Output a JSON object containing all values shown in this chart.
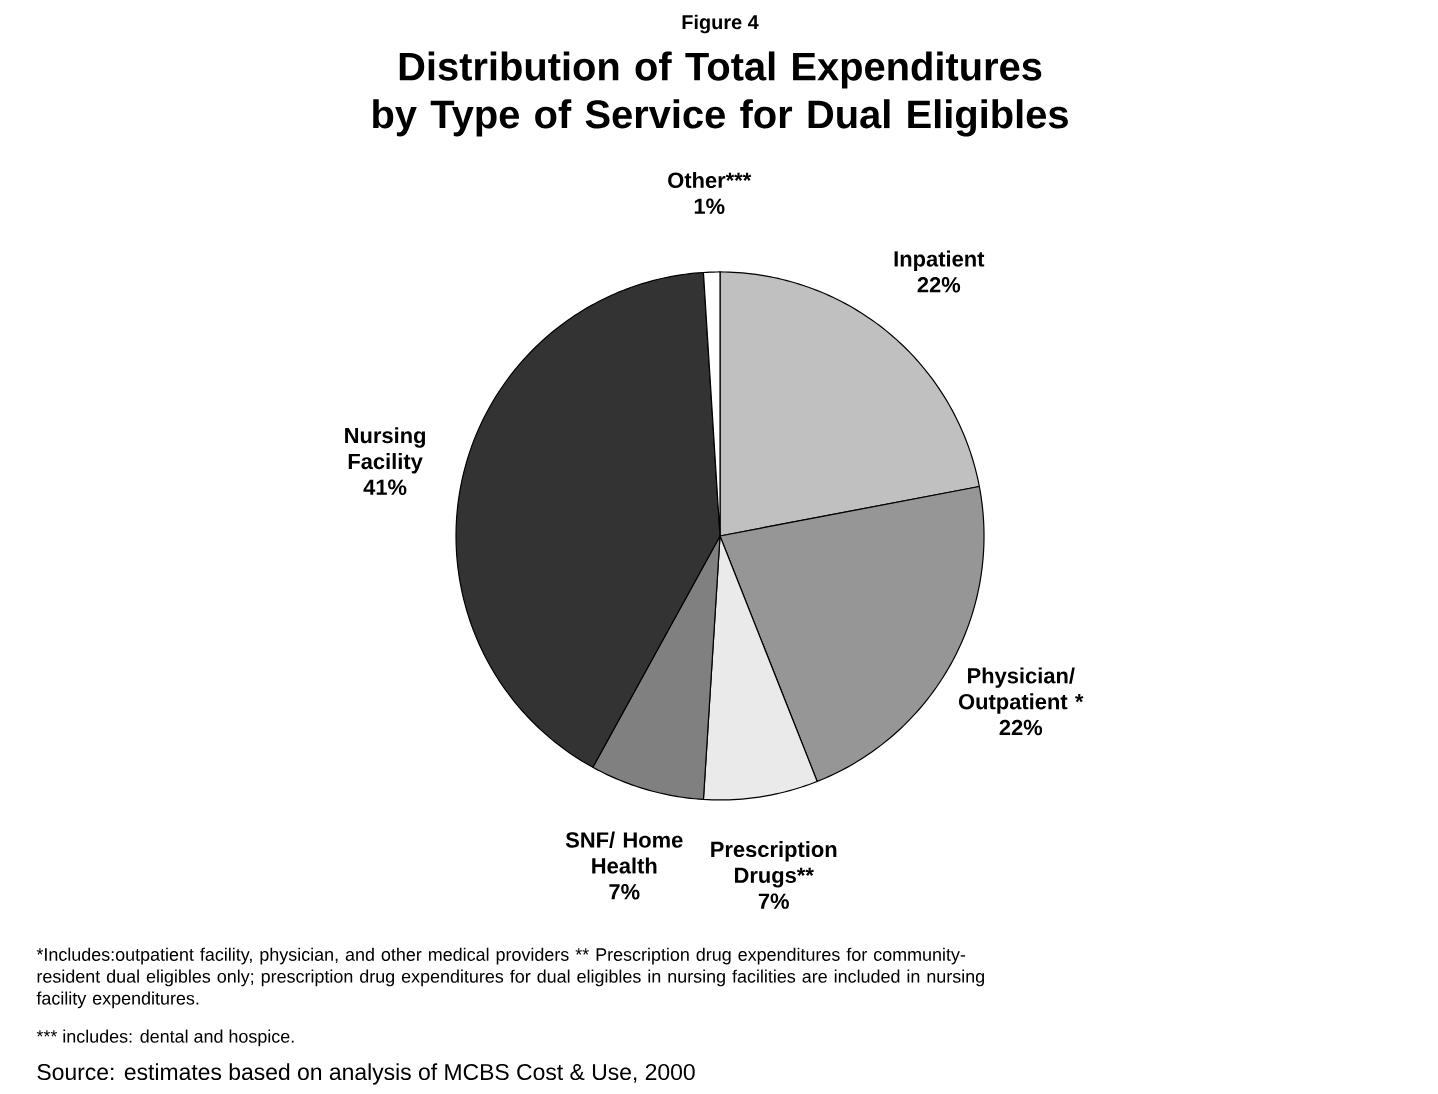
{
  "chart_data": {
    "type": "pie",
    "title": "Distribution of Total Expenditures by Type of Service for Dual Eligibles",
    "categories": [
      "Inpatient",
      "Physician/ Outpatient *",
      "Prescription Drugs**",
      "SNF/ Home Health",
      "Nursing Facility",
      "Other***"
    ],
    "values": [
      22,
      22,
      7,
      7,
      41,
      1
    ],
    "value_labels": [
      "22%",
      "22%",
      "7%",
      "7%",
      "41%",
      "1%"
    ],
    "colors": [
      "#c0c0c0",
      "#969696",
      "#eaeaea",
      "#808080",
      "#333333",
      "#ffffff"
    ],
    "annotations": [
      "Figure 4",
      "*Includes:outpatient facility, physician, and other medical providers ** Prescription drug expenditures for community-resident dual eligibles only; prescription drug expenditures for dual eligibles in nursing facilities are included in nursing facility expenditures.",
      "*** includes: dental and hospice.",
      "Source: estimates based on analysis of MCBS Cost & Use, 2000"
    ]
  }
}
